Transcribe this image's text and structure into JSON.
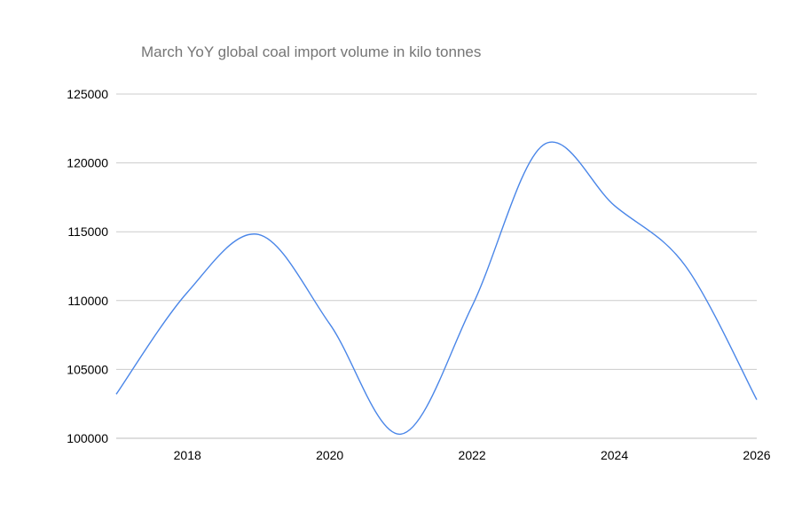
{
  "chart_data": {
    "type": "line",
    "title": "March YoY global coal import volume in kilo tonnes",
    "xlabel": "",
    "ylabel": "",
    "x": [
      2017,
      2018,
      2019,
      2020,
      2021,
      2022,
      2023,
      2024,
      2025,
      2026
    ],
    "series": [
      {
        "values": [
          103200,
          110600,
          114800,
          108300,
          100300,
          109600,
          121300,
          116900,
          112500,
          102800
        ],
        "color": "#4a86e8"
      }
    ],
    "xlim": [
      2017,
      2026
    ],
    "ylim": [
      100000,
      125000
    ],
    "x_ticks": [
      "2018",
      "2020",
      "2022",
      "2024",
      "2026"
    ],
    "y_ticks": [
      "100000",
      "105000",
      "110000",
      "115000",
      "120000",
      "125000"
    ],
    "grid": true,
    "smooth": true,
    "legend": "none"
  }
}
